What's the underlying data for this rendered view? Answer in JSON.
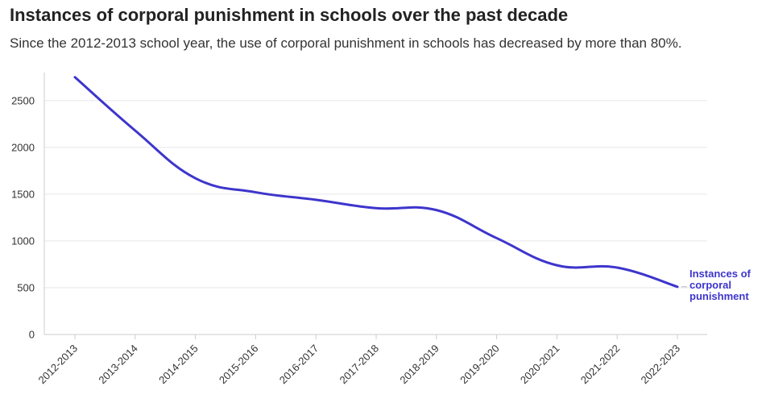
{
  "title": "Instances of corporal punishment in schools over the past decade",
  "subtitle": "Since the 2012-2013 school year, the use of corporal punishment in schools has decreased by more than 80%.",
  "chart_data": {
    "type": "line",
    "categories": [
      "2012-2013",
      "2013-2014",
      "2014-2015",
      "2015-2016",
      "2016-2017",
      "2017-2018",
      "2018-2019",
      "2019-2020",
      "2020-2021",
      "2021-2022",
      "2022-2023"
    ],
    "series": [
      {
        "name": "Instances of corporal punishment",
        "label_lines": [
          "Instances of",
          "corporal",
          "punishment"
        ],
        "values": [
          2750,
          2180,
          1670,
          1520,
          1440,
          1350,
          1330,
          1030,
          740,
          715,
          510
        ],
        "color": "#3d35cc"
      }
    ],
    "yticks": [
      0,
      500,
      1000,
      1500,
      2000,
      2500
    ],
    "ylim": [
      0,
      2800
    ],
    "grid": "horizontal",
    "gridColor": "#e6e6e6",
    "axisColor": "#cccccc"
  }
}
